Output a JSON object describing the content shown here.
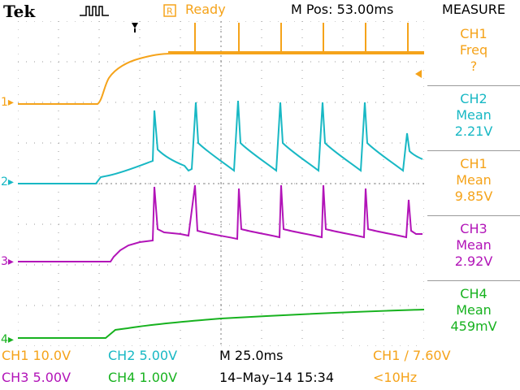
{
  "header": {
    "brand": "Tek",
    "status_text": "Ready",
    "horizontal_position": "M Pos: 53.00ms",
    "measure_title": "MEASURE"
  },
  "colors": {
    "ch1": "#f5a31a",
    "ch2": "#18b8c4",
    "ch3": "#b214b8",
    "ch4": "#17b21f",
    "grid": "#9a9a9a",
    "separator": "#9a9a9a"
  },
  "channel_markers": [
    "1",
    "2",
    "3",
    "4"
  ],
  "measurements": [
    {
      "channel": "CH1",
      "type": "Freq",
      "value": "?",
      "color": "#f5a31a"
    },
    {
      "channel": "CH2",
      "type": "Mean",
      "value": "2.21V",
      "color": "#18b8c4"
    },
    {
      "channel": "CH1",
      "type": "Mean",
      "value": "9.85V",
      "color": "#f5a31a"
    },
    {
      "channel": "CH3",
      "type": "Mean",
      "value": "2.92V",
      "color": "#b214b8"
    },
    {
      "channel": "CH4",
      "type": "Mean",
      "value": "459mV",
      "color": "#17b21f"
    }
  ],
  "footer": {
    "ch1_scale": "CH1  10.0V",
    "ch2_scale": "CH2  5.00V",
    "time_base": "M 25.0ms",
    "trigger": "CH1 ∕ 7.60V",
    "ch3_scale": "CH3  5.00V",
    "ch4_scale": "CH4  1.00V",
    "date_time": "14–May–14 15:34",
    "trigger_freq": "<10Hz"
  }
}
